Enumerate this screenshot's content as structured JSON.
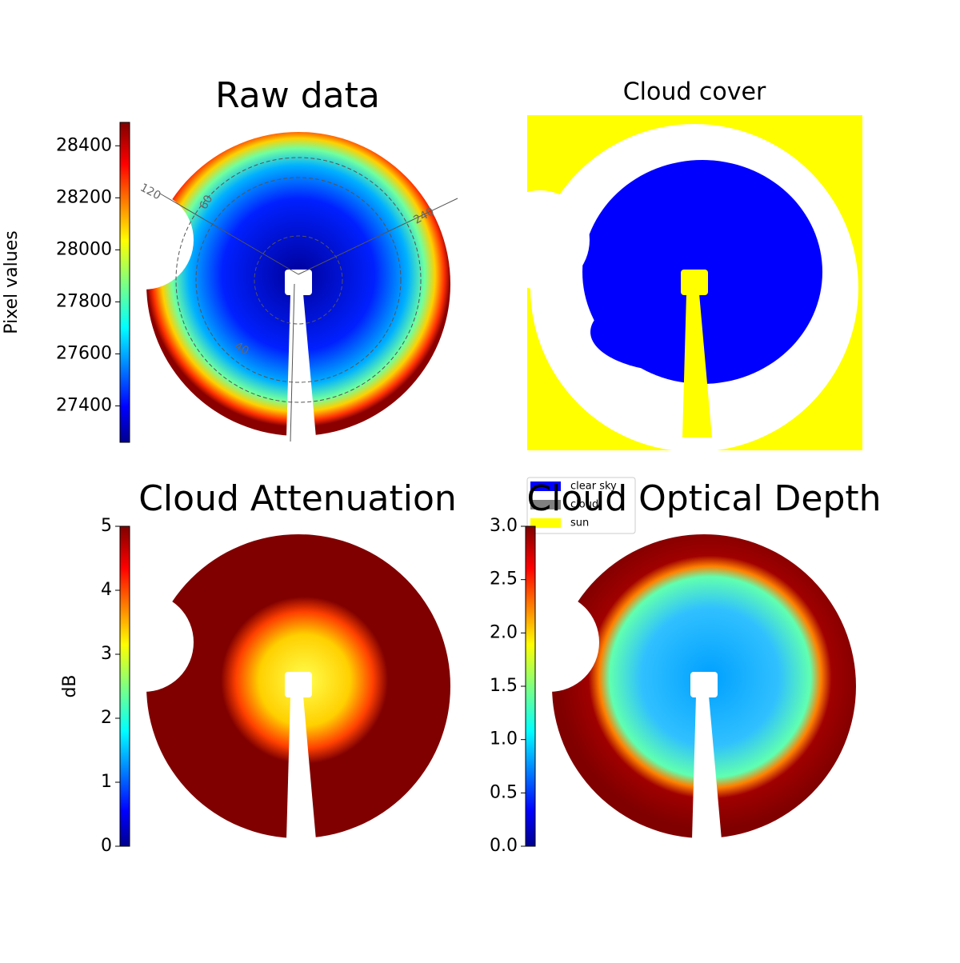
{
  "chart_data": [
    {
      "type": "image",
      "title": "Raw data",
      "clabel": "Pixel values",
      "clim": [
        27260,
        28490
      ],
      "cticks": [
        27400,
        27600,
        27800,
        28000,
        28200,
        28400
      ],
      "annotations": [
        "120",
        "60",
        "240",
        "40"
      ]
    },
    {
      "type": "mask",
      "title": "Cloud cover",
      "series": [
        {
          "name": "clear sky",
          "color": "#0000ff"
        },
        {
          "name": "cloud",
          "color": "#808080"
        },
        {
          "name": "sun",
          "color": "#ffff00"
        }
      ]
    },
    {
      "type": "image",
      "title": "Cloud Attenuation",
      "clabel": "dB",
      "clim": [
        0,
        5
      ],
      "cticks": [
        0,
        1,
        2,
        3,
        4,
        5
      ]
    },
    {
      "type": "image",
      "title": "Cloud Optical Depth",
      "clim": [
        0,
        3
      ],
      "cticks": [
        {
          "value": 0,
          "label": "0.0"
        },
        0.5,
        {
          "value": 1,
          "label": "1.0"
        },
        1.5,
        {
          "value": 2,
          "label": "2.0"
        },
        2.5,
        {
          "value": 3,
          "label": "3.0"
        }
      ]
    }
  ]
}
